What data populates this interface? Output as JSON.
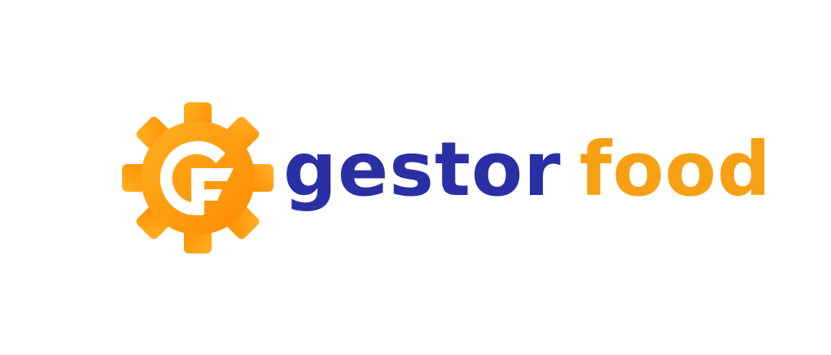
{
  "logo": {
    "icon": "gear-f-icon",
    "word_primary": "gestor",
    "word_secondary": "food"
  },
  "colors": {
    "primary_blue": "#2a2fa6",
    "accent_orange": "#f8a013",
    "gear_orange_dark": "#ff8a00",
    "gear_orange_light": "#ffb020",
    "background": "#ffffff"
  }
}
